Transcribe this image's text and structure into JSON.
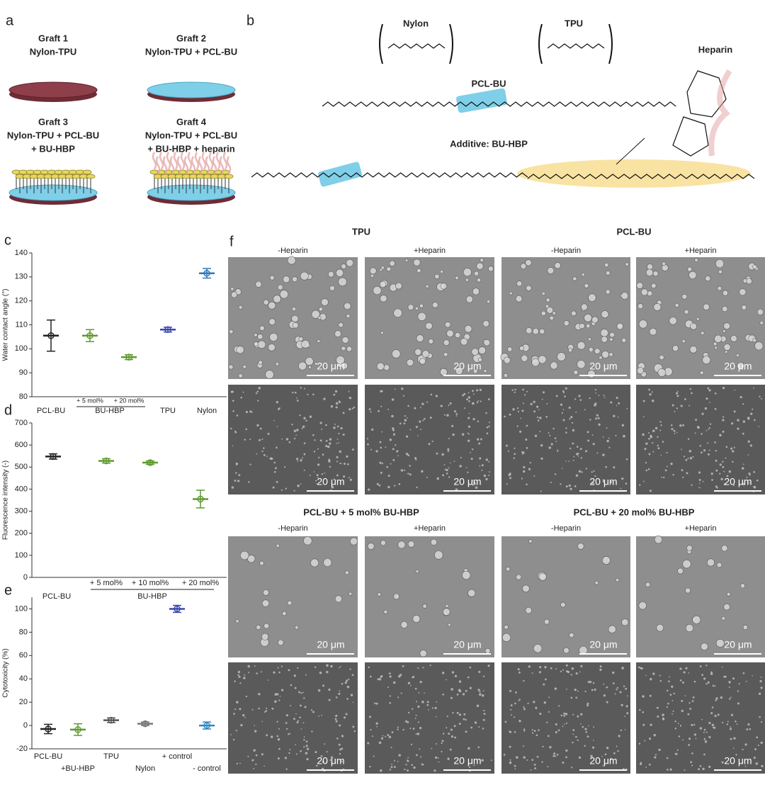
{
  "panel_a": {
    "label": "a",
    "grafts": [
      {
        "title": "Graft 1",
        "lines": [
          "Nylon-TPU"
        ]
      },
      {
        "title": "Graft 2",
        "lines": [
          "Nylon-TPU + PCL-BU"
        ]
      },
      {
        "title": "Graft 3",
        "lines": [
          "Nylon-TPU + PCL-BU",
          "+ BU-HBP"
        ]
      },
      {
        "title": "Graft 4",
        "lines": [
          "Nylon-TPU + PCL-BU",
          "+ BU-HBP + heparin"
        ]
      }
    ]
  },
  "panel_b": {
    "label": "b",
    "nylon": "Nylon",
    "tpu": "TPU",
    "heparin": "Heparin",
    "pcl_bu": "PCL-BU",
    "additive": "Additive: BU-HBP"
  },
  "chart_data": [
    {
      "type": "errorbar",
      "label": "c",
      "y_label": "Water contact angle (°)",
      "categories": [
        "PCL-BU",
        "+ 5 mol%",
        "+ 20 mol%",
        "TPU",
        "Nylon"
      ],
      "group_label": "BU-HBP",
      "values": [
        105.5,
        105.5,
        96.5,
        108,
        131.5
      ],
      "errors": [
        6.5,
        2.5,
        1,
        1,
        2
      ],
      "colors": [
        "#222222",
        "#5e9a2c",
        "#5e9a2c",
        "#3b47a8",
        "#2f78b8"
      ],
      "ylim": [
        80,
        140
      ],
      "yticks": [
        80,
        90,
        100,
        110,
        120,
        130,
        140
      ]
    },
    {
      "type": "errorbar",
      "label": "d",
      "y_label": "Fluorescence intensity (-)",
      "categories": [
        "PCL-BU",
        "+ 5 mol%",
        "+ 10 mol%",
        "+ 20 mol%"
      ],
      "group_label": "BU-HBP",
      "values": [
        548,
        528,
        520,
        355
      ],
      "errors": [
        12,
        10,
        8,
        40
      ],
      "colors": [
        "#222222",
        "#5e9a2c",
        "#5e9a2c",
        "#5e9a2c"
      ],
      "ylim": [
        0,
        700
      ],
      "yticks": [
        0,
        100,
        200,
        300,
        400,
        500,
        600,
        700
      ]
    },
    {
      "type": "errorbar",
      "label": "e",
      "y_label": "Cytotoxicity (%)",
      "categories": [
        "PCL-BU",
        "+BU-HBP",
        "TPU",
        "Nylon",
        "+ control",
        "- control"
      ],
      "values": [
        -3,
        -3.5,
        4.5,
        1.5,
        100,
        0
      ],
      "errors": [
        4,
        5,
        2,
        1.5,
        3,
        3
      ],
      "colors": [
        "#222222",
        "#5e9a2c",
        "#555555",
        "#777777",
        "#3b47a8",
        "#2f88c0"
      ],
      "ylim": [
        -20,
        110
      ],
      "yticks": [
        -20,
        0,
        20,
        40,
        60,
        80,
        100
      ]
    }
  ],
  "panel_f": {
    "label": "f",
    "scale_bar": "20 μm",
    "blocks": [
      {
        "titles": [
          "TPU",
          "PCL-BU"
        ],
        "conditions": [
          "-Heparin",
          "+Heparin",
          "-Heparin",
          "+Heparin"
        ]
      },
      {
        "titles": [
          "PCL-BU + 5 mol% BU-HBP",
          "PCL-BU + 20 mol% BU-HBP"
        ],
        "conditions": [
          "-Heparin",
          "+Heparin",
          "-Heparin",
          "+Heparin"
        ]
      }
    ]
  }
}
